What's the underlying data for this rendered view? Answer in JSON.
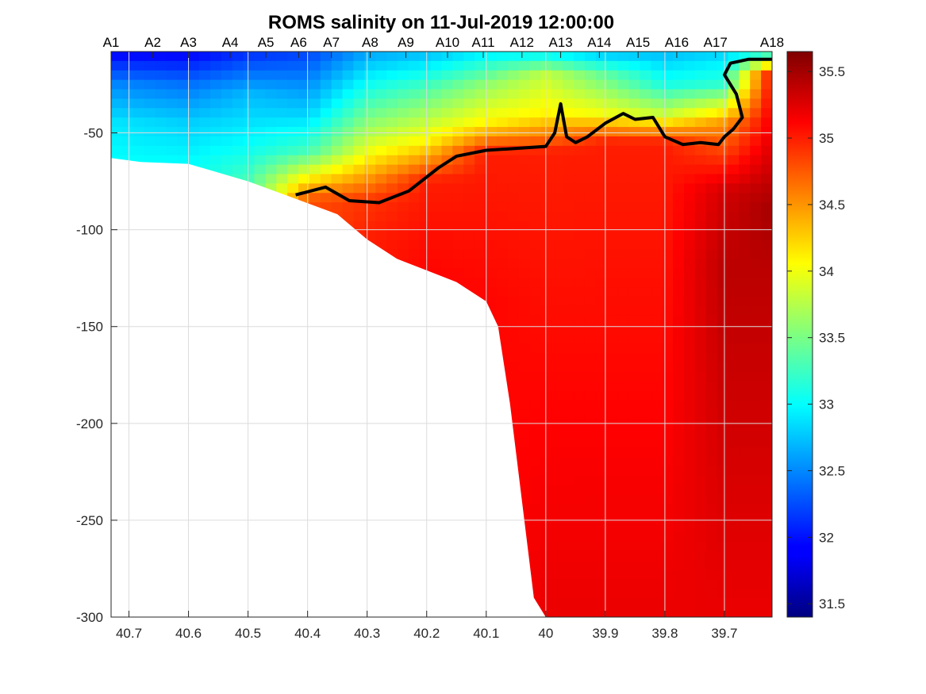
{
  "chart_data": {
    "type": "heatmap",
    "title": "ROMS salinity on 11-Jul-2019 12:00:00",
    "xlabel": "",
    "ylabel": "",
    "x_reversed": true,
    "xlim": [
      40.73,
      39.62
    ],
    "ylim": [
      -300,
      -8
    ],
    "x_ticks": [
      40.7,
      40.6,
      40.5,
      40.4,
      40.3,
      40.2,
      40.1,
      40,
      39.9,
      39.8,
      39.7
    ],
    "x_tick_labels": [
      "40.7",
      "40.6",
      "40.5",
      "40.4",
      "40.3",
      "40.2",
      "40.1",
      "40",
      "39.9",
      "39.8",
      "39.7"
    ],
    "y_ticks": [
      -50,
      -100,
      -150,
      -200,
      -250,
      -300
    ],
    "y_tick_labels": [
      "-50",
      "-100",
      "-150",
      "-200",
      "-250",
      "-300"
    ],
    "grid": true,
    "stations": [
      {
        "label": "A1",
        "x": 40.73
      },
      {
        "label": "A2",
        "x": 40.66
      },
      {
        "label": "A3",
        "x": 40.6
      },
      {
        "label": "A4",
        "x": 40.53
      },
      {
        "label": "A5",
        "x": 40.47
      },
      {
        "label": "A6",
        "x": 40.415
      },
      {
        "label": "A7",
        "x": 40.36
      },
      {
        "label": "A8",
        "x": 40.295
      },
      {
        "label": "A9",
        "x": 40.235
      },
      {
        "label": "A10",
        "x": 40.165
      },
      {
        "label": "A11",
        "x": 40.105
      },
      {
        "label": "A12",
        "x": 40.04
      },
      {
        "label": "A13",
        "x": 39.975
      },
      {
        "label": "A14",
        "x": 39.91
      },
      {
        "label": "A15",
        "x": 39.845
      },
      {
        "label": "A16",
        "x": 39.78
      },
      {
        "label": "A17",
        "x": 39.715
      },
      {
        "label": "A18",
        "x": 39.62
      }
    ],
    "colorbar": {
      "colormap": "jet",
      "range": [
        31.4,
        35.65
      ],
      "ticks": [
        31.5,
        32,
        32.5,
        33,
        33.5,
        34,
        34.5,
        35,
        35.5
      ],
      "tick_labels": [
        "31.5",
        "32",
        "32.5",
        "33",
        "33.5",
        "34",
        "34.5",
        "35",
        "35.5"
      ]
    },
    "bathymetry": {
      "x": [
        40.73,
        40.68,
        40.6,
        40.5,
        40.42,
        40.35,
        40.3,
        40.25,
        40.2,
        40.15,
        40.1,
        40.08,
        40.06,
        40.04,
        40.02,
        40.0
      ],
      "depth": [
        -63,
        -65,
        -66,
        -75,
        -84,
        -92,
        -105,
        -115,
        -121,
        -127,
        -137,
        -150,
        -190,
        -240,
        -290,
        -300
      ]
    },
    "salinity_profiles": [
      {
        "x": 40.73,
        "depth": [
          -8,
          -25,
          -45,
          -63
        ],
        "salinity": [
          31.9,
          32.5,
          32.9,
          33.0
        ]
      },
      {
        "x": 40.6,
        "depth": [
          -8,
          -25,
          -45,
          -66
        ],
        "salinity": [
          31.9,
          32.4,
          32.8,
          33.0
        ]
      },
      {
        "x": 40.5,
        "depth": [
          -8,
          -30,
          -55,
          -75
        ],
        "salinity": [
          32.1,
          32.7,
          33.0,
          33.3
        ]
      },
      {
        "x": 40.4,
        "depth": [
          -8,
          -40,
          -60,
          -80,
          -85
        ],
        "salinity": [
          32.2,
          32.8,
          33.3,
          34.5,
          34.8
        ]
      },
      {
        "x": 40.3,
        "depth": [
          -8,
          -35,
          -60,
          -85,
          -105
        ],
        "salinity": [
          32.6,
          33.3,
          34.0,
          34.9,
          35.0
        ]
      },
      {
        "x": 40.2,
        "depth": [
          -8,
          -30,
          -55,
          -75,
          -121
        ],
        "salinity": [
          32.7,
          33.4,
          34.1,
          35.0,
          35.1
        ]
      },
      {
        "x": 40.1,
        "depth": [
          -8,
          -25,
          -45,
          -60,
          -137
        ],
        "salinity": [
          32.9,
          33.6,
          34.1,
          35.0,
          35.1
        ]
      },
      {
        "x": 40.0,
        "depth": [
          -8,
          -20,
          -40,
          -60,
          -300
        ],
        "salinity": [
          32.9,
          33.8,
          34.1,
          35.0,
          35.2
        ]
      },
      {
        "x": 39.9,
        "depth": [
          -8,
          -20,
          -40,
          -55,
          -300
        ],
        "salinity": [
          32.7,
          33.4,
          34.0,
          35.0,
          35.2
        ]
      },
      {
        "x": 39.8,
        "depth": [
          -8,
          -25,
          -40,
          -55,
          -300
        ],
        "salinity": [
          32.7,
          33.1,
          33.8,
          35.0,
          35.2
        ]
      },
      {
        "x": 39.7,
        "depth": [
          -8,
          -25,
          -45,
          -80,
          -120,
          -300
        ],
        "salinity": [
          32.8,
          33.2,
          34.5,
          35.3,
          35.4,
          35.2
        ]
      },
      {
        "x": 39.62,
        "depth": [
          -8,
          -20,
          -50,
          -90,
          -120,
          -300
        ],
        "salinity": [
          32.9,
          35.1,
          35.2,
          35.5,
          35.4,
          35.2
        ]
      }
    ],
    "contour_35": {
      "x": [
        40.42,
        40.37,
        40.33,
        40.28,
        40.23,
        40.18,
        40.15,
        40.1,
        40.05,
        40.0,
        39.985,
        39.975,
        39.965,
        39.95,
        39.93,
        39.9,
        39.87,
        39.85,
        39.82,
        39.8,
        39.77,
        39.74,
        39.71,
        39.7,
        39.685,
        39.67,
        39.68,
        39.7,
        39.69,
        39.66,
        39.62
      ],
      "depth": [
        -82,
        -78,
        -85,
        -86,
        -80,
        -68,
        -62,
        -59,
        -58,
        -57,
        -50,
        -35,
        -52,
        -55,
        -52,
        -45,
        -40,
        -43,
        -42,
        -52,
        -56,
        -55,
        -56,
        -52,
        -48,
        -42,
        -30,
        -20,
        -14,
        -12,
        -12
      ]
    }
  }
}
